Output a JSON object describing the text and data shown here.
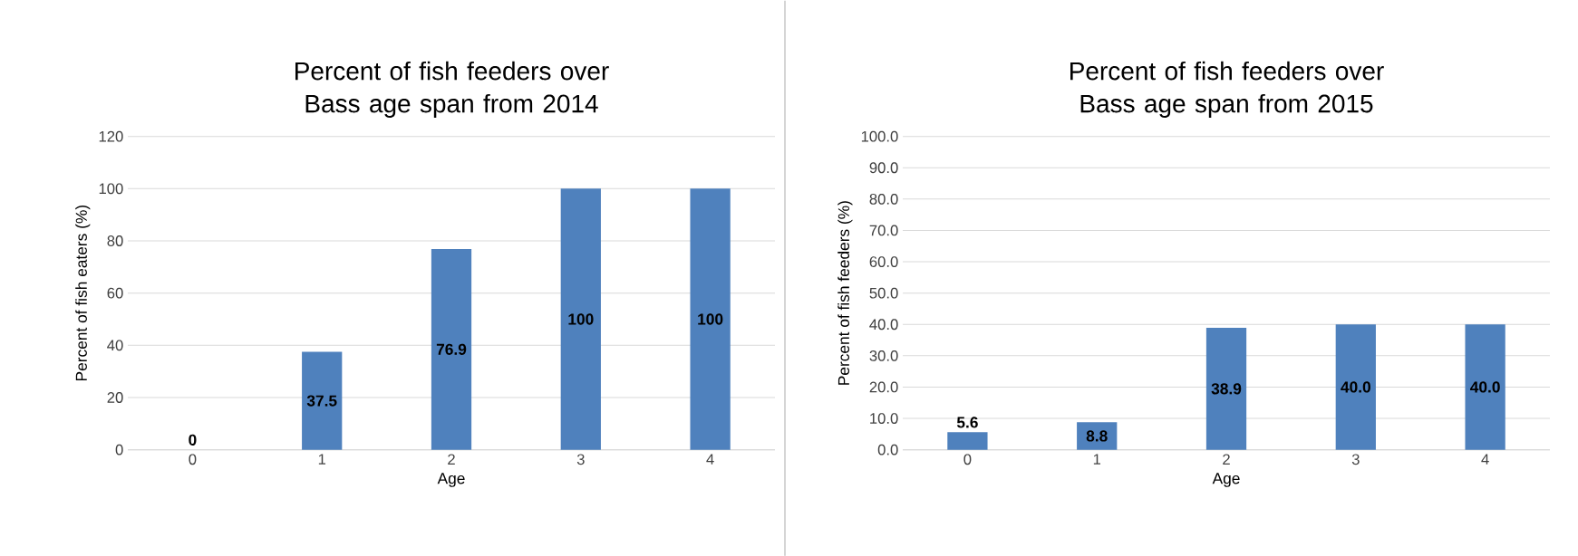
{
  "chart_data": [
    {
      "type": "bar",
      "title": "Percent of fish feeders over Bass age span from 2014",
      "xlabel": "Age",
      "ylabel": "Percent of fish eaters (%)",
      "categories": [
        "0",
        "1",
        "2",
        "3",
        "4"
      ],
      "values": [
        0,
        37.5,
        76.9,
        100,
        100
      ],
      "color": "#4f81bd",
      "ylim": [
        0,
        120
      ],
      "yticks": [
        0,
        20,
        40,
        60,
        80,
        100,
        120
      ],
      "grid": "y",
      "data_labels": true
    },
    {
      "type": "bar",
      "title": "Percent of fish feeders over Bass age span from 2015",
      "xlabel": "Age",
      "ylabel": "Percent of fish feeders (%)",
      "categories": [
        "0",
        "1",
        "2",
        "3",
        "4"
      ],
      "values": [
        5.6,
        8.8,
        38.9,
        40.0,
        40.0
      ],
      "value_labels": [
        "5.6",
        "8.8",
        "38.9",
        "40.0",
        "40.0"
      ],
      "color": "#4f81bd",
      "ylim": [
        0,
        100
      ],
      "yticks": [
        {
          "value": 0,
          "label": "0.0"
        },
        {
          "value": 10,
          "label": "10.0"
        },
        {
          "value": 20,
          "label": "20.0"
        },
        {
          "value": 30,
          "label": "30.0"
        },
        {
          "value": 40,
          "label": "40.0"
        },
        {
          "value": 50,
          "label": "50.0"
        },
        {
          "value": 60,
          "label": "60.0"
        },
        {
          "value": 70,
          "label": "70.0"
        },
        {
          "value": 80,
          "label": "80.0"
        },
        {
          "value": 90,
          "label": "90.0"
        },
        {
          "value": 100,
          "label": "100.0"
        }
      ],
      "grid": "y"
    }
  ]
}
